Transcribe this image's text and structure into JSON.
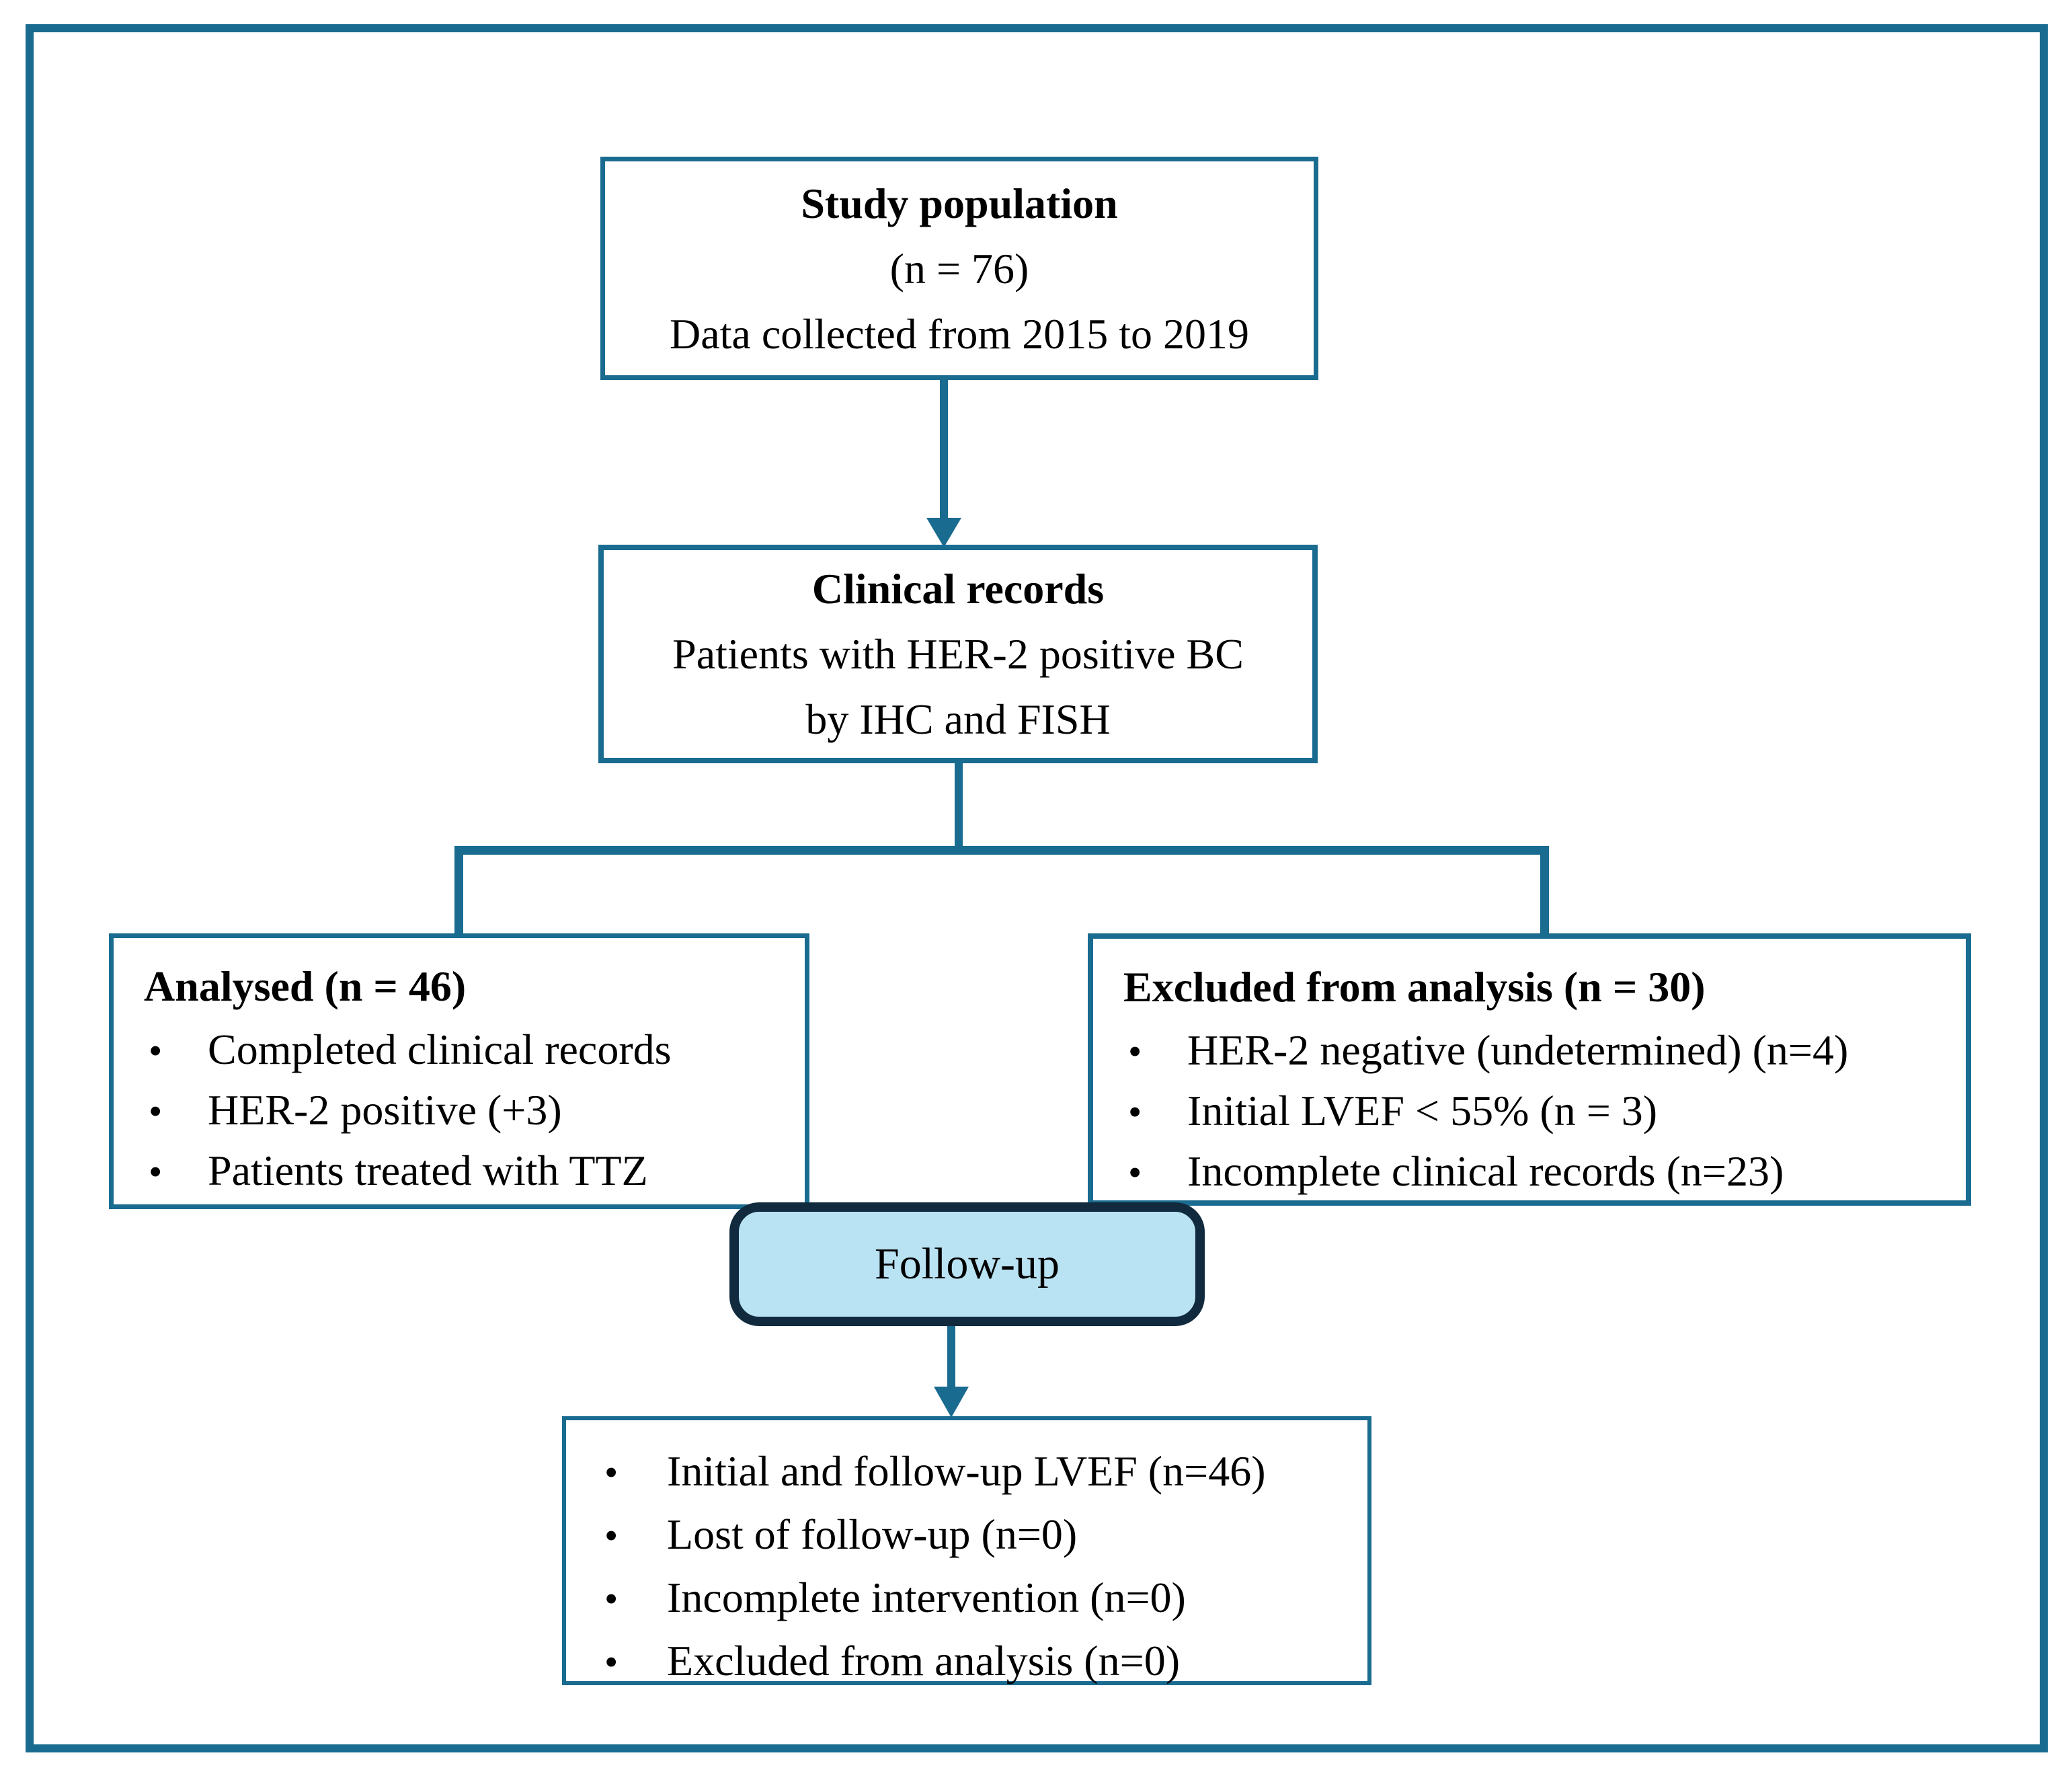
{
  "ui": {
    "bullet_char": "•"
  },
  "colors": {
    "line_teal": "#1a6b90",
    "followup_fill": "#b9e2f3",
    "followup_border": "#112a3d",
    "text": "#000000",
    "background": "#ffffff"
  },
  "boxes": {
    "study": {
      "title": "Study population",
      "line2": "(n = 76)",
      "line3": "Data collected from 2015 to 2019"
    },
    "clinical": {
      "title": "Clinical records",
      "line2": "Patients with HER-2 positive BC",
      "line3": "by IHC and FISH"
    },
    "analysed": {
      "title": "Analysed (n = 46)",
      "bullets": [
        "Completed clinical records",
        "HER-2 positive (+3)",
        "Patients treated with TTZ"
      ]
    },
    "excluded": {
      "title": "Excluded from analysis (n = 30)",
      "bullets": [
        "HER-2 negative (undetermined) (n=4)",
        "Initial LVEF < 55% (n = 3)",
        "Incomplete clinical records (n=23)"
      ]
    },
    "followup": {
      "label": "Follow-up"
    },
    "outcome": {
      "bullets": [
        "Initial and follow-up LVEF (n=46)",
        "Lost of follow-up (n=0)",
        "Incomplete intervention (n=0)",
        "Excluded from analysis (n=0)"
      ]
    }
  }
}
